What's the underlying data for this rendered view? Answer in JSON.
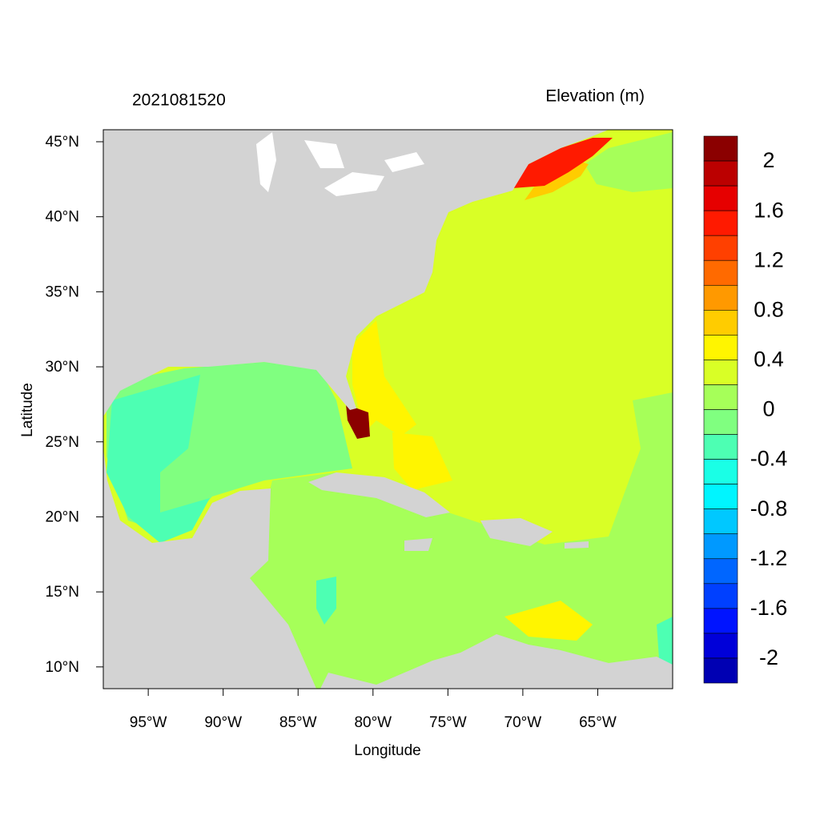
{
  "map": {
    "title": "2021081520",
    "colorbar_title": "Elevation (m)",
    "x_label": "Longitude",
    "y_label": "Latitude",
    "xlim": [
      -98,
      -60
    ],
    "ylim": [
      8.55,
      45.8
    ],
    "xticks": [
      {
        "value": -95,
        "label": "95°W"
      },
      {
        "value": -90,
        "label": "90°W"
      },
      {
        "value": -85,
        "label": "85°W"
      },
      {
        "value": -80,
        "label": "80°W"
      },
      {
        "value": -75,
        "label": "75°W"
      },
      {
        "value": -70,
        "label": "70°W"
      },
      {
        "value": -65,
        "label": "65°W"
      }
    ],
    "yticks": [
      {
        "value": 10,
        "label": "10°N"
      },
      {
        "value": 15,
        "label": "15°N"
      },
      {
        "value": 20,
        "label": "20°N"
      },
      {
        "value": 25,
        "label": "25°N"
      },
      {
        "value": 30,
        "label": "30°N"
      },
      {
        "value": 35,
        "label": "35°N"
      },
      {
        "value": 40,
        "label": "40°N"
      },
      {
        "value": 45,
        "label": "45°N"
      }
    ],
    "colorbar": {
      "levels": [
        2.2,
        2.0,
        1.8,
        1.6,
        1.4,
        1.2,
        1.0,
        0.8,
        0.6,
        0.4,
        0.2,
        0,
        -0.2,
        -0.4,
        -0.6,
        -0.8,
        -1.0,
        -1.2,
        -1.4,
        -1.6,
        -1.8,
        -2.0,
        -2.2
      ],
      "colors": [
        "#8b0000",
        "#bb0000",
        "#e60000",
        "#ff1a00",
        "#ff4000",
        "#ff6a00",
        "#ff9900",
        "#ffcc00",
        "#fff500",
        "#d9ff26",
        "#a6ff59",
        "#80ff80",
        "#4dffb3",
        "#1affe6",
        "#00f5ff",
        "#00c8ff",
        "#0099ff",
        "#0066ff",
        "#0040ff",
        "#0014ff",
        "#0000d9",
        "#0000b3"
      ],
      "ticks": [
        2,
        1.6,
        1.2,
        0.8,
        0.4,
        0,
        -0.4,
        -0.8,
        -1.2,
        -1.6,
        -2
      ]
    }
  }
}
